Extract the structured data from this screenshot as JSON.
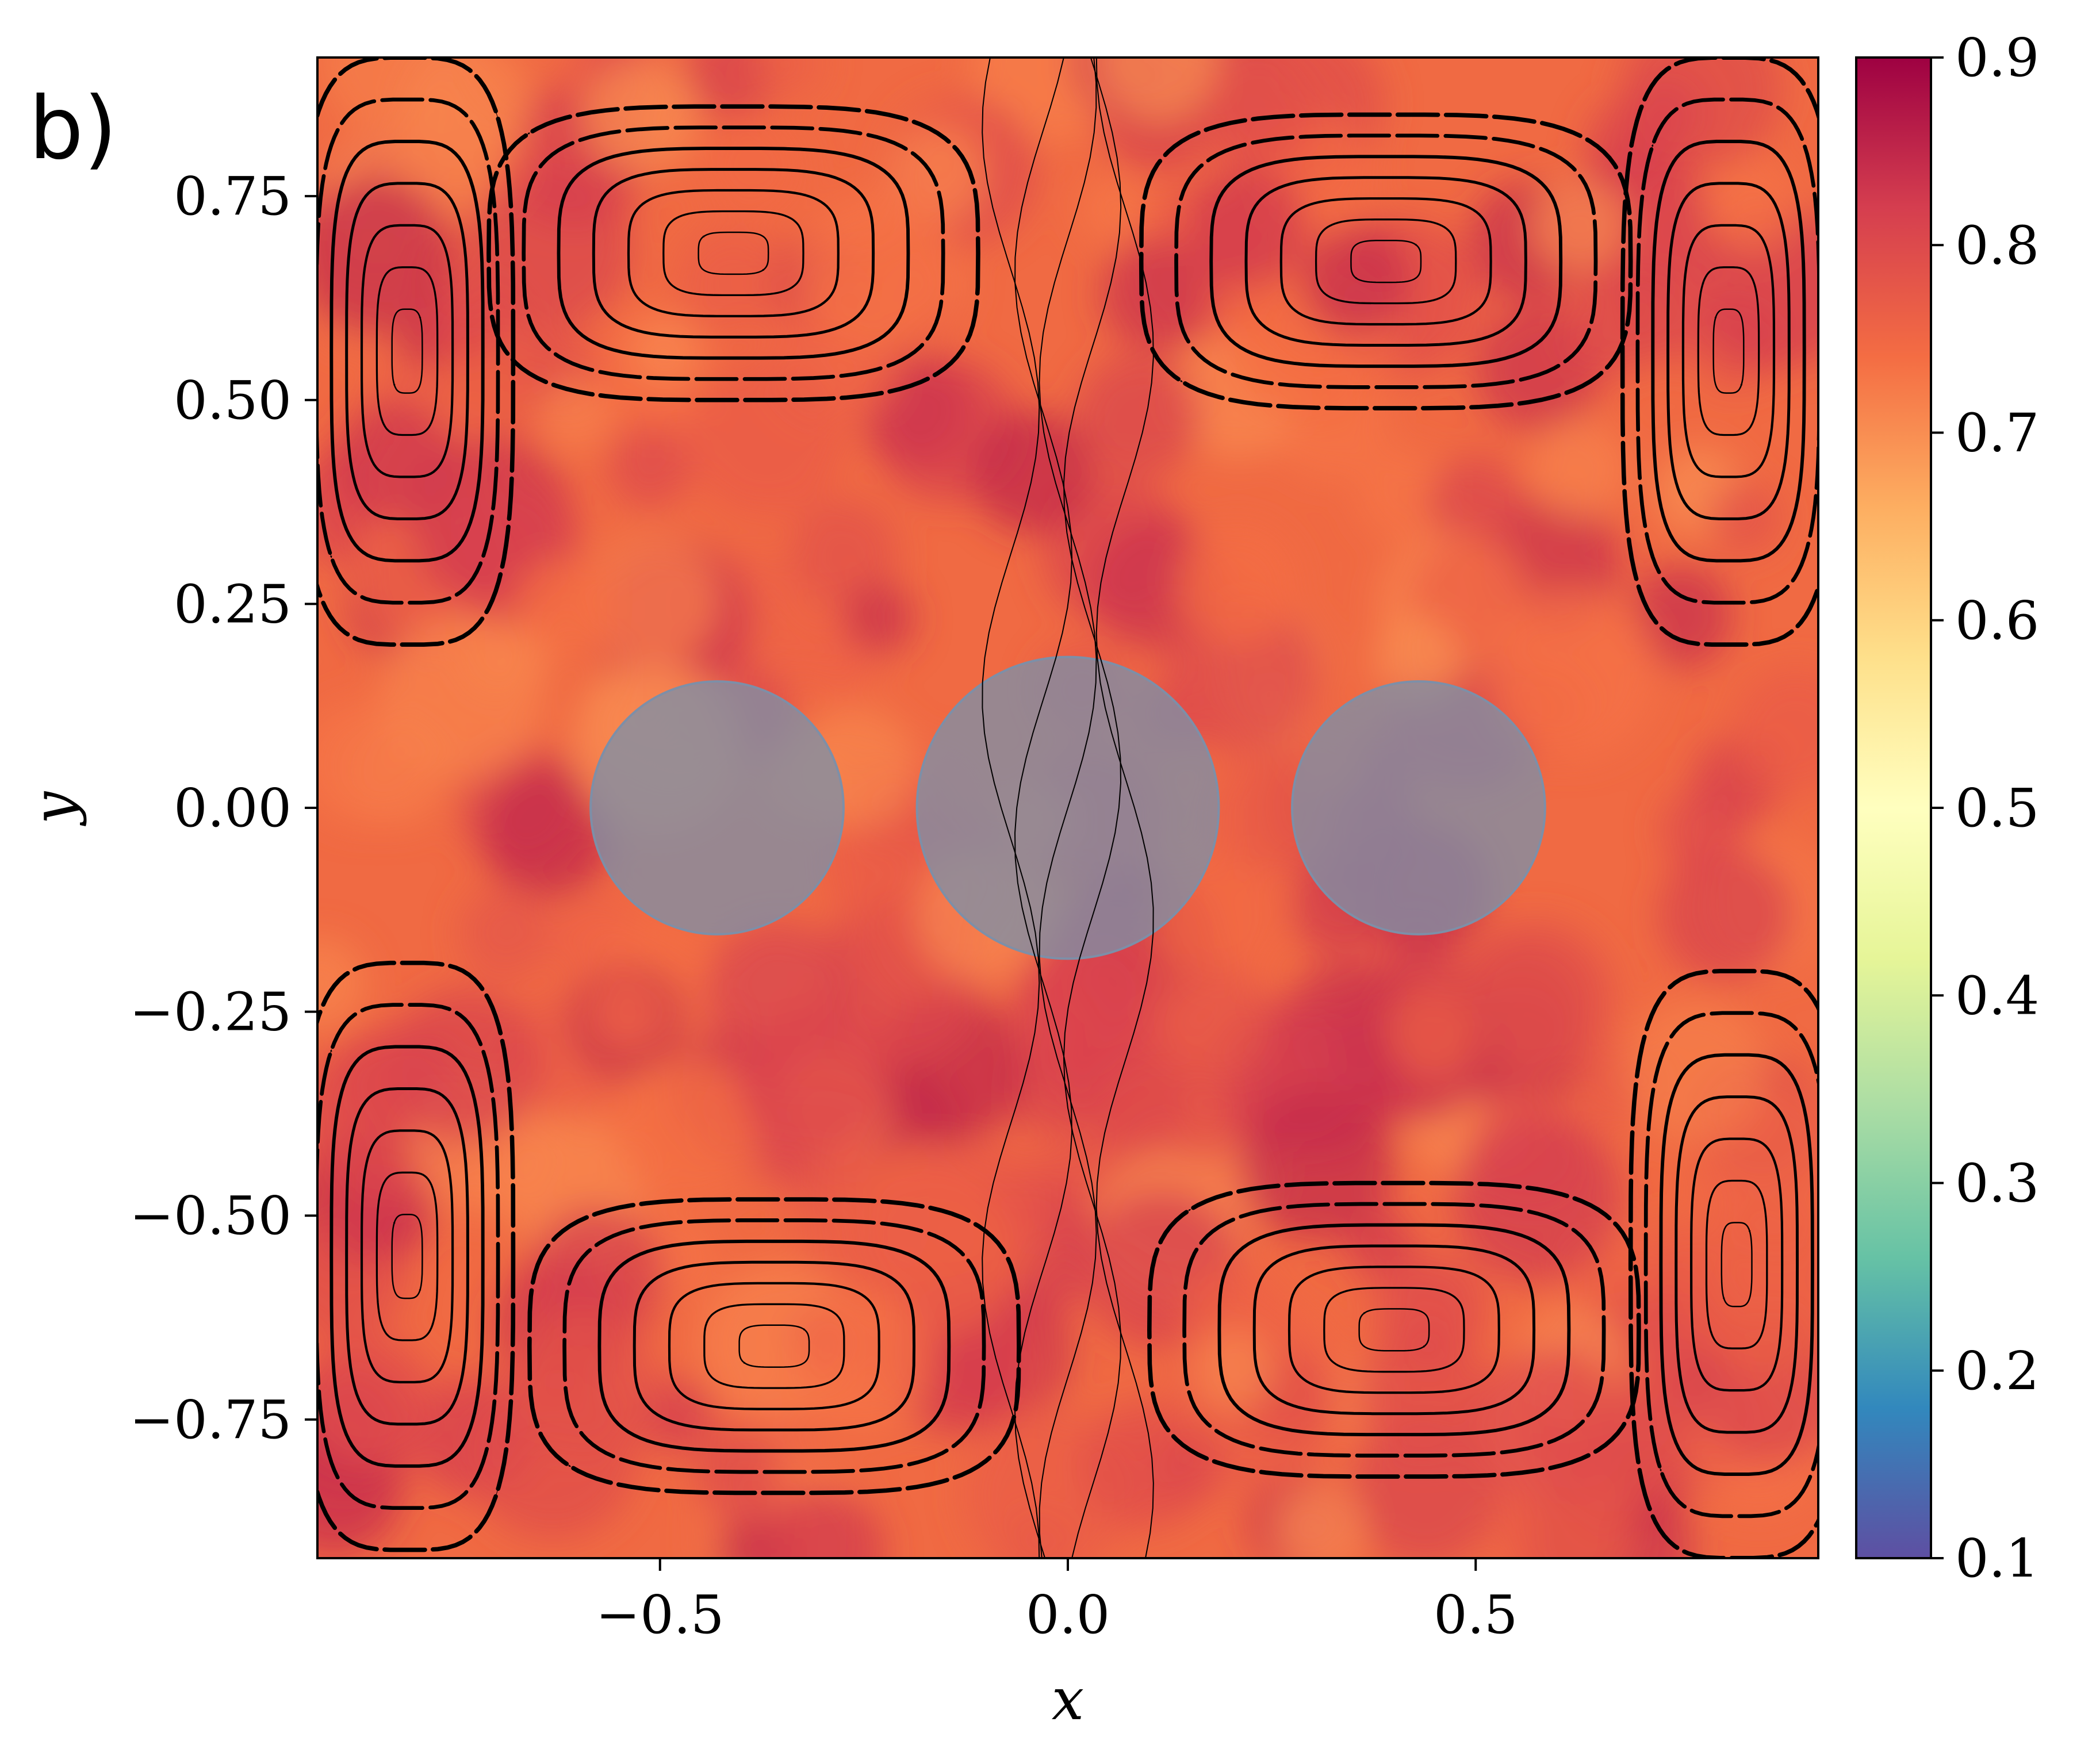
{
  "chart_data": {
    "type": "heatmap",
    "panel_label": "b)",
    "xlabel": "x",
    "ylabel": "y",
    "xlim": [
      -0.92,
      0.92
    ],
    "ylim": [
      -0.92,
      0.92
    ],
    "x_ticks": [
      -0.5,
      0.0,
      0.5
    ],
    "x_tick_labels": [
      "−0.5",
      "0.0",
      "0.5"
    ],
    "y_ticks": [
      0.75,
      0.5,
      0.25,
      0.0,
      -0.25,
      -0.5,
      -0.75
    ],
    "y_tick_labels": [
      "0.75",
      "0.50",
      "0.25",
      "0.00",
      "−0.25",
      "−0.50",
      "−0.75"
    ],
    "colorbar": {
      "colormap": "Spectral_r",
      "range": [
        0.1,
        0.9
      ],
      "ticks": [
        0.1,
        0.2,
        0.3,
        0.4,
        0.5,
        0.6,
        0.7,
        0.8,
        0.9
      ],
      "tick_labels": [
        "0.1",
        "0.2",
        "0.3",
        "0.4",
        "0.5",
        "0.6",
        "0.7",
        "0.8",
        "0.9"
      ],
      "colors": [
        "#5e4fa2",
        "#3288bd",
        "#66c2a5",
        "#abdda4",
        "#e6f598",
        "#ffffbf",
        "#fee08b",
        "#fdae61",
        "#f46d43",
        "#d53e4f",
        "#9e0142"
      ]
    },
    "field_level_range": [
      0.7,
      0.85
    ],
    "obstacles": [
      {
        "cx": -0.43,
        "cy": 0.0,
        "r": 0.155
      },
      {
        "cx": 0.0,
        "cy": 0.0,
        "r": 0.185
      },
      {
        "cx": 0.43,
        "cy": 0.0,
        "r": 0.155
      }
    ],
    "obstacle_color": "#7f8fa6",
    "vortices": [
      {
        "cx": -0.81,
        "cy": 0.56,
        "rx": 0.13,
        "ry": 0.36,
        "dir": 1
      },
      {
        "cx": -0.41,
        "cy": 0.68,
        "rx": 0.3,
        "ry": 0.18,
        "dir": -1
      },
      {
        "cx": 0.39,
        "cy": 0.67,
        "rx": 0.3,
        "ry": 0.18,
        "dir": 1
      },
      {
        "cx": 0.81,
        "cy": 0.56,
        "rx": 0.13,
        "ry": 0.36,
        "dir": -1
      },
      {
        "cx": -0.81,
        "cy": -0.55,
        "rx": 0.13,
        "ry": 0.36,
        "dir": -1
      },
      {
        "cx": -0.36,
        "cy": -0.66,
        "rx": 0.3,
        "ry": 0.18,
        "dir": 1
      },
      {
        "cx": 0.4,
        "cy": -0.64,
        "rx": 0.3,
        "ry": 0.18,
        "dir": -1
      },
      {
        "cx": 0.82,
        "cy": -0.56,
        "rx": 0.13,
        "ry": 0.36,
        "dir": 1
      }
    ]
  }
}
